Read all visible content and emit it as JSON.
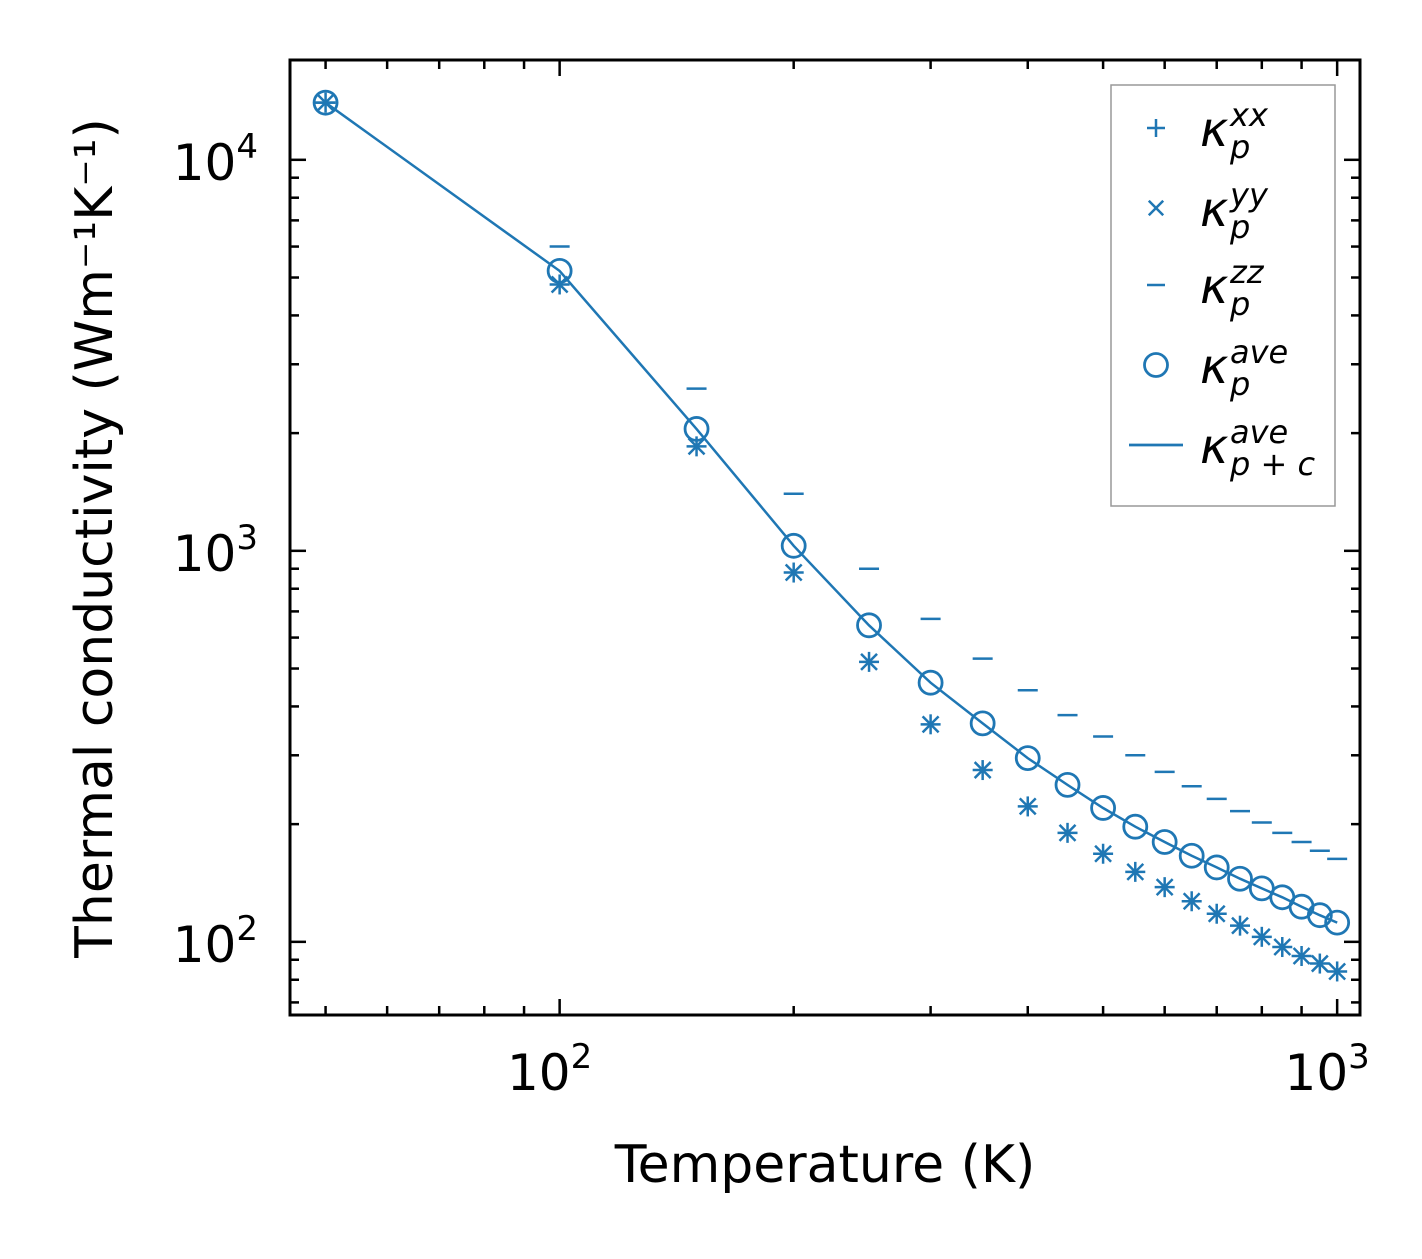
{
  "chart_data": {
    "type": "scatter",
    "xscale": "log",
    "yscale": "log",
    "xlabel": "Temperature (K)",
    "ylabel": "Thermal conductivity (Wm⁻¹K⁻¹)",
    "xlim": [
      45,
      1070
    ],
    "ylim": [
      65,
      18000
    ],
    "xticks": [
      {
        "value": 100,
        "base": "10",
        "exp": "2"
      },
      {
        "value": 1000,
        "base": "10",
        "exp": "3"
      }
    ],
    "yticks": [
      {
        "value": 100,
        "base": "10",
        "exp": "2"
      },
      {
        "value": 1000,
        "base": "10",
        "exp": "3"
      },
      {
        "value": 10000,
        "base": "10",
        "exp": "4"
      }
    ],
    "color": "#1f77b4",
    "x": [
      50,
      100,
      150,
      200,
      250,
      300,
      350,
      400,
      450,
      500,
      550,
      600,
      650,
      700,
      750,
      800,
      850,
      900,
      950,
      1000
    ],
    "series": [
      {
        "name": "kappa_p_xx",
        "marker": "plus",
        "values": [
          14000,
          4800,
          1850,
          880,
          520,
          360,
          275,
          222,
          190,
          168,
          151,
          138,
          127,
          118,
          110,
          103,
          97,
          92,
          88,
          84
        ]
      },
      {
        "name": "kappa_p_yy",
        "marker": "x",
        "values": [
          14000,
          4800,
          1850,
          880,
          520,
          360,
          275,
          222,
          190,
          168,
          151,
          138,
          127,
          118,
          110,
          103,
          97,
          92,
          88,
          84
        ]
      },
      {
        "name": "kappa_p_zz",
        "marker": "hline",
        "values": [
          14000,
          6000,
          2600,
          1400,
          900,
          670,
          530,
          440,
          380,
          335,
          300,
          272,
          250,
          232,
          216,
          202,
          190,
          180,
          171,
          163
        ]
      },
      {
        "name": "kappa_p_ave",
        "marker": "circle",
        "values": [
          14000,
          5200,
          2050,
          1030,
          645,
          460,
          362,
          295,
          252,
          220,
          197,
          180,
          166,
          155,
          145,
          137,
          130,
          123,
          117,
          112
        ]
      },
      {
        "name": "kappa_p+c_ave",
        "marker": "line",
        "values": [
          14000,
          5200,
          2050,
          1030,
          645,
          460,
          362,
          295,
          252,
          220,
          197,
          180,
          166,
          155,
          145,
          137,
          130,
          123,
          117,
          112
        ]
      }
    ],
    "legend": {
      "location": "top-right",
      "entries": [
        {
          "marker": "plus",
          "symbol": "κ",
          "sub": "p",
          "sup": "xx"
        },
        {
          "marker": "x",
          "symbol": "κ",
          "sub": "p",
          "sup": "yy"
        },
        {
          "marker": "hline",
          "symbol": "κ",
          "sub": "p",
          "sup": "zz"
        },
        {
          "marker": "circle",
          "symbol": "κ",
          "sub": "p",
          "sup": "ave"
        },
        {
          "marker": "line",
          "symbol": "κ",
          "sub": "p + c",
          "sup": "ave"
        }
      ]
    }
  }
}
